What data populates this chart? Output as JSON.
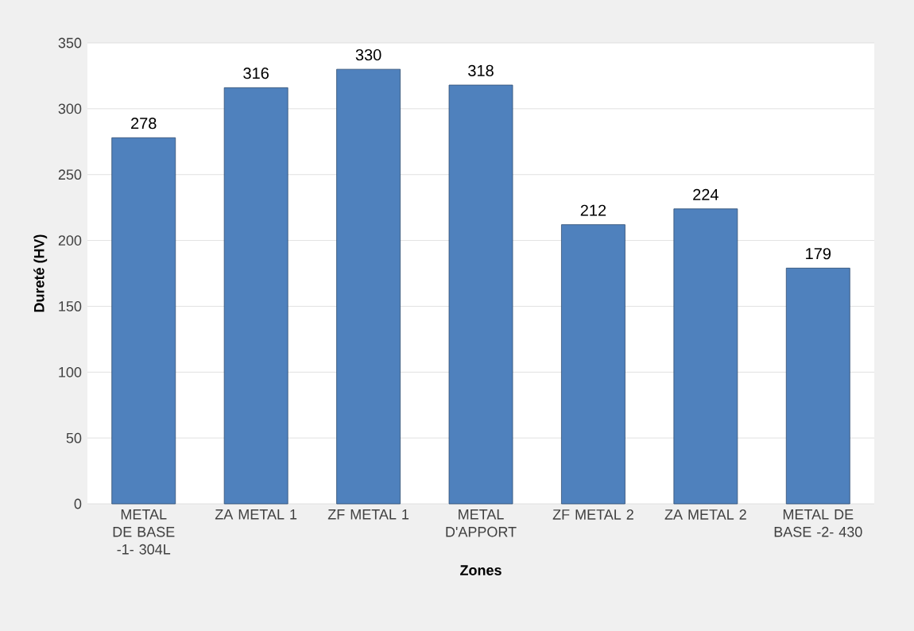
{
  "chart_data": {
    "type": "bar",
    "xlabel": "Zones",
    "ylabel": "Dureté (HV)",
    "categories": [
      "METAL DE BASE -1- 304L",
      "ZA METAL 1",
      "ZF METAL 1",
      "METAL D'APPORT",
      "ZF METAL 2",
      "ZA METAL 2",
      "METAL DE BASE -2- 430"
    ],
    "values": [
      278,
      316,
      330,
      318,
      212,
      224,
      179
    ],
    "color": "#4f81bd",
    "ylim": [
      0,
      350
    ],
    "yticks": [
      0,
      50,
      100,
      150,
      200,
      250,
      300,
      350
    ],
    "grid": "y",
    "data_labels": true
  }
}
